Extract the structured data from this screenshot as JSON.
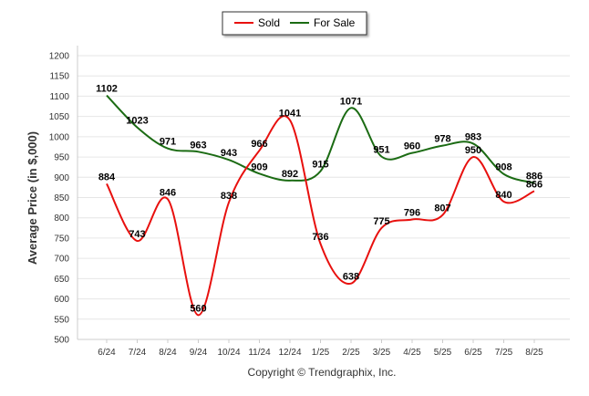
{
  "chart_data": {
    "type": "line",
    "title": "",
    "xlabel": "",
    "ylabel": "Average Price (in $,000)",
    "categories": [
      "6/24",
      "7/24",
      "8/24",
      "9/24",
      "10/24",
      "11/24",
      "12/24",
      "1/25",
      "2/25",
      "3/25",
      "4/25",
      "5/25",
      "6/25",
      "7/25",
      "8/25"
    ],
    "ylim": [
      500,
      1200
    ],
    "yticks": [
      500,
      550,
      600,
      650,
      700,
      750,
      800,
      850,
      900,
      950,
      1000,
      1050,
      1100,
      1150,
      1200
    ],
    "grid": true,
    "legend_position": "top-center",
    "series": [
      {
        "name": "Sold",
        "color": "#e8100e",
        "values": [
          884,
          743,
          846,
          560,
          838,
          966,
          1041,
          736,
          638,
          775,
          796,
          807,
          950,
          840,
          866
        ]
      },
      {
        "name": "For Sale",
        "color": "#1b6b13",
        "values": [
          1102,
          1023,
          971,
          963,
          943,
          909,
          892,
          915,
          1071,
          951,
          960,
          978,
          983,
          908,
          886
        ]
      }
    ],
    "footer": "Copyright © Trendgraphix, Inc."
  }
}
